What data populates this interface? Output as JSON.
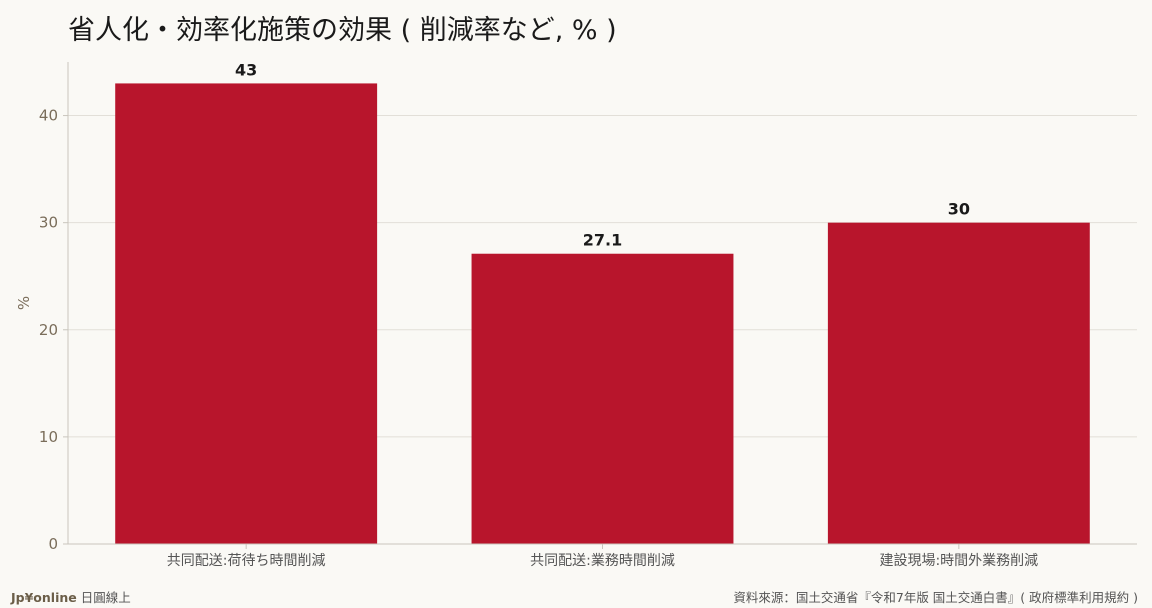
{
  "chart_data": {
    "type": "bar",
    "title": "省人化・効率化施策の効果 ( 削減率など, % )",
    "ylabel": "%",
    "xlabel": "",
    "categories": [
      "共同配送:荷待ち時間削減",
      "共同配送:業務時間削減",
      "建設現場:時間外業務削減"
    ],
    "values": [
      43,
      27.1,
      30
    ],
    "value_labels": [
      "43",
      "27.1",
      "30"
    ],
    "ylim": [
      0,
      45
    ],
    "yticks": [
      0,
      10,
      20,
      30,
      40
    ],
    "grid": true,
    "bar_color": "#b8152c"
  },
  "footer": {
    "brand": "Jp¥online",
    "brand_suffix": "日圓線上",
    "source": "資料來源：国土交通省『令和7年版 国土交通白書』( 政府標準利用規約 )"
  },
  "colors": {
    "background": "#faf9f5",
    "grid": "#e2dfd8",
    "axis": "#c9c5bd",
    "tick_text": "#7a6d5a"
  }
}
